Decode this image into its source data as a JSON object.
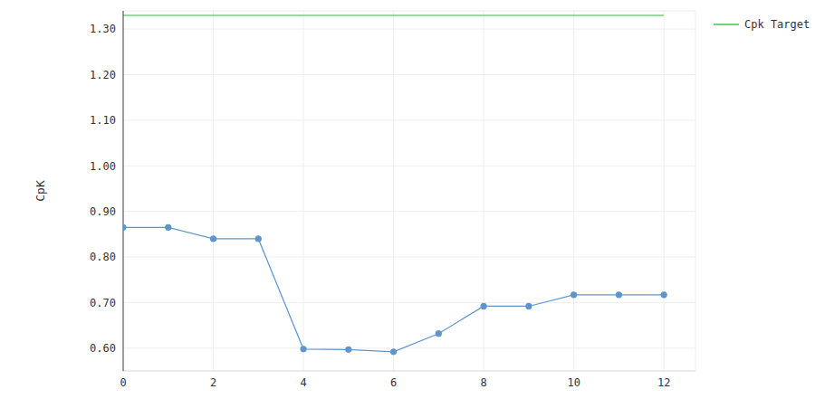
{
  "chart_data": {
    "type": "line",
    "y_label": "CpK",
    "x": [
      0,
      1,
      2,
      3,
      4,
      5,
      6,
      7,
      8,
      9,
      10,
      11,
      12
    ],
    "series": [
      {
        "values": [
          0.865,
          0.865,
          0.84,
          0.84,
          0.598,
          0.597,
          0.592,
          0.632,
          0.692,
          0.692,
          0.717,
          0.717,
          0.717
        ],
        "color": "#5e96cb",
        "marker": "circle"
      },
      {
        "name": "Cpk Target",
        "values": [
          1.33,
          1.33,
          1.33,
          1.33,
          1.33,
          1.33,
          1.33,
          1.33,
          1.33,
          1.33,
          1.33,
          1.33,
          1.33
        ],
        "color": "#72cf7f",
        "marker": "none"
      }
    ],
    "xlim": [
      0,
      12.7
    ],
    "xticks": [
      0,
      2,
      4,
      6,
      8,
      10,
      12
    ],
    "ylim": [
      0.55,
      1.34
    ],
    "yticks": [
      {
        "value": 0.6,
        "label": "0.60"
      },
      {
        "value": 0.7,
        "label": "0.70"
      },
      {
        "value": 0.8,
        "label": "0.80"
      },
      {
        "value": 0.9,
        "label": "0.90"
      },
      {
        "value": 1.0,
        "label": "1.00"
      },
      {
        "value": 1.1,
        "label": "1.10"
      },
      {
        "value": 1.2,
        "label": "1.20"
      },
      {
        "value": 1.3,
        "label": "1.30"
      }
    ],
    "grid": true,
    "legend": "right"
  }
}
